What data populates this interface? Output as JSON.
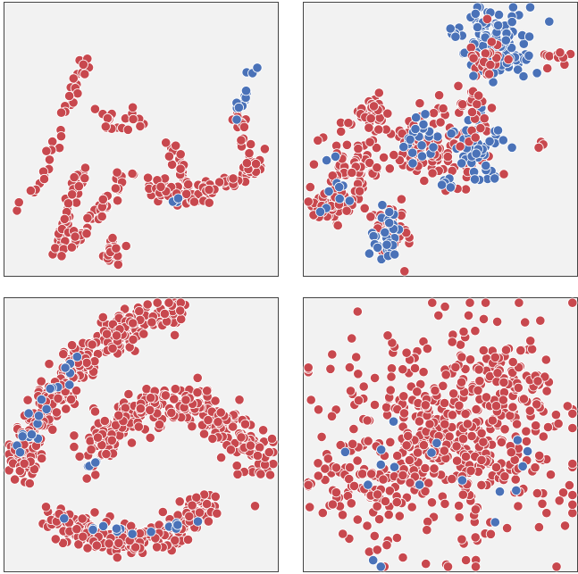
{
  "colors": {
    "red": "#c8484e",
    "blue": "#4a72b8",
    "panel_bg": "#f2f2f2",
    "panel_border": "#444444",
    "point_edge": "#ffffff"
  },
  "chart_data": [
    {
      "type": "scatter",
      "title": "",
      "xlabel": "",
      "ylabel": "",
      "xlim": [
        0,
        1
      ],
      "ylim": [
        0,
        1
      ],
      "grid": false,
      "legend": "none",
      "clusters": [
        {
          "color": "red",
          "n": 20,
          "cx": 0.39,
          "cy": 0.91,
          "sx": 0.02,
          "sy": 0.03
        },
        {
          "color": "red",
          "n": 35,
          "path": [
            [
              0.3,
              0.6
            ],
            [
              0.26,
              0.68
            ],
            [
              0.23,
              0.78
            ],
            [
              0.21,
              0.86
            ],
            [
              0.2,
              0.93
            ]
          ],
          "spread": 0.012
        },
        {
          "color": "red",
          "n": 45,
          "path": [
            [
              0.21,
              0.93
            ],
            [
              0.28,
              0.84
            ],
            [
              0.35,
              0.76
            ],
            [
              0.41,
              0.68
            ],
            [
              0.47,
              0.6
            ]
          ],
          "spread": 0.013
        },
        {
          "color": "red",
          "n": 40,
          "path": [
            [
              0.04,
              0.75
            ],
            [
              0.1,
              0.7
            ],
            [
              0.15,
              0.62
            ],
            [
              0.19,
              0.5
            ],
            [
              0.23,
              0.38
            ],
            [
              0.26,
              0.3
            ],
            [
              0.29,
              0.22
            ]
          ],
          "spread": 0.014
        },
        {
          "color": "red",
          "n": 15,
          "path": [
            [
              0.34,
              0.38
            ],
            [
              0.38,
              0.43
            ],
            [
              0.4,
              0.47
            ],
            [
              0.43,
              0.44
            ],
            [
              0.47,
              0.4
            ]
          ],
          "spread": 0.012
        },
        {
          "color": "red",
          "n": 30,
          "path": [
            [
              0.6,
              0.52
            ],
            [
              0.63,
              0.57
            ],
            [
              0.66,
              0.62
            ],
            [
              0.68,
              0.68
            ],
            [
              0.7,
              0.72
            ]
          ],
          "spread": 0.016
        },
        {
          "color": "red",
          "n": 30,
          "path": [
            [
              0.52,
              0.66
            ],
            [
              0.58,
              0.68
            ],
            [
              0.63,
              0.7
            ],
            [
              0.68,
              0.71
            ]
          ],
          "spread": 0.016
        },
        {
          "color": "red",
          "n": 45,
          "path": [
            [
              0.68,
              0.71
            ],
            [
              0.74,
              0.69
            ],
            [
              0.8,
              0.67
            ],
            [
              0.86,
              0.64
            ],
            [
              0.91,
              0.6
            ],
            [
              0.94,
              0.57
            ]
          ],
          "spread": 0.018
        },
        {
          "color": "red",
          "n": 22,
          "path": [
            [
              0.84,
              0.4
            ],
            [
              0.87,
              0.48
            ],
            [
              0.88,
              0.56
            ],
            [
              0.9,
              0.62
            ]
          ],
          "spread": 0.014
        },
        {
          "color": "red",
          "n": 5,
          "cx": 0.48,
          "cy": 0.43,
          "sx": 0.015,
          "sy": 0.015
        },
        {
          "color": "blue",
          "n": 14,
          "path": [
            [
              0.84,
              0.44
            ],
            [
              0.86,
              0.38
            ],
            [
              0.89,
              0.3
            ],
            [
              0.91,
              0.24
            ]
          ],
          "spread": 0.01
        },
        {
          "color": "blue",
          "n": 3,
          "cx": 0.62,
          "cy": 0.72,
          "sx": 0.008,
          "sy": 0.006
        }
      ]
    },
    {
      "type": "scatter",
      "title": "",
      "xlabel": "",
      "ylabel": "",
      "xlim": [
        0,
        1
      ],
      "ylim": [
        0,
        1
      ],
      "grid": false,
      "legend": "none",
      "clusters": [
        {
          "color": "blue",
          "n": 120,
          "cx": 0.7,
          "cy": 0.14,
          "sx": 0.07,
          "sy": 0.06
        },
        {
          "color": "red",
          "n": 25,
          "cx": 0.67,
          "cy": 0.2,
          "sx": 0.04,
          "sy": 0.05
        },
        {
          "color": "red",
          "n": 14,
          "cx": 0.93,
          "cy": 0.21,
          "sx": 0.025,
          "sy": 0.018
        },
        {
          "color": "red",
          "n": 55,
          "cx": 0.55,
          "cy": 0.52,
          "sx": 0.06,
          "sy": 0.08
        },
        {
          "color": "blue",
          "n": 50,
          "cx": 0.64,
          "cy": 0.54,
          "sx": 0.04,
          "sy": 0.07
        },
        {
          "color": "red",
          "n": 60,
          "cx": 0.4,
          "cy": 0.52,
          "sx": 0.07,
          "sy": 0.06
        },
        {
          "color": "blue",
          "n": 20,
          "cx": 0.42,
          "cy": 0.5,
          "sx": 0.05,
          "sy": 0.06
        },
        {
          "color": "red",
          "n": 60,
          "cx": 0.18,
          "cy": 0.62,
          "sx": 0.06,
          "sy": 0.06
        },
        {
          "color": "red",
          "n": 40,
          "cx": 0.09,
          "cy": 0.74,
          "sx": 0.04,
          "sy": 0.03
        },
        {
          "color": "blue",
          "n": 10,
          "cx": 0.12,
          "cy": 0.64,
          "sx": 0.05,
          "sy": 0.07
        },
        {
          "color": "red",
          "n": 40,
          "cx": 0.24,
          "cy": 0.41,
          "sx": 0.04,
          "sy": 0.03
        },
        {
          "color": "red",
          "n": 45,
          "cx": 0.32,
          "cy": 0.84,
          "sx": 0.03,
          "sy": 0.06
        },
        {
          "color": "blue",
          "n": 30,
          "cx": 0.31,
          "cy": 0.85,
          "sx": 0.03,
          "sy": 0.05
        },
        {
          "color": "red",
          "n": 20,
          "cx": 0.62,
          "cy": 0.4,
          "sx": 0.03,
          "sy": 0.06
        },
        {
          "color": "red",
          "n": 4,
          "cx": 0.86,
          "cy": 0.52,
          "sx": 0.006,
          "sy": 0.006
        },
        {
          "color": "blue",
          "n": 6,
          "cx": 0.52,
          "cy": 0.66,
          "sx": 0.02,
          "sy": 0.015
        }
      ]
    },
    {
      "type": "scatter",
      "title": "",
      "xlabel": "",
      "ylabel": "",
      "xlim": [
        0,
        1
      ],
      "ylim": [
        0,
        1
      ],
      "grid": false,
      "legend": "none",
      "clusters": [
        {
          "color": "red",
          "n": 330,
          "path": [
            [
              0.06,
              0.65
            ],
            [
              0.09,
              0.52
            ],
            [
              0.16,
              0.38
            ],
            [
              0.27,
              0.25
            ],
            [
              0.4,
              0.13
            ],
            [
              0.52,
              0.07
            ],
            [
              0.64,
              0.05
            ]
          ],
          "spread": 0.032
        },
        {
          "color": "blue",
          "n": 20,
          "path": [
            [
              0.06,
              0.58
            ],
            [
              0.09,
              0.5
            ],
            [
              0.14,
              0.42
            ],
            [
              0.2,
              0.32
            ],
            [
              0.26,
              0.24
            ],
            [
              0.31,
              0.22
            ]
          ],
          "spread": 0.018
        },
        {
          "color": "red",
          "n": 300,
          "path": [
            [
              0.33,
              0.58
            ],
            [
              0.4,
              0.48
            ],
            [
              0.48,
              0.42
            ],
            [
              0.58,
              0.38
            ],
            [
              0.67,
              0.38
            ],
            [
              0.76,
              0.43
            ],
            [
              0.84,
              0.5
            ],
            [
              0.91,
              0.55
            ],
            [
              0.95,
              0.62
            ]
          ],
          "spread": 0.038
        },
        {
          "color": "blue",
          "n": 4,
          "path": [
            [
              0.3,
              0.62
            ],
            [
              0.34,
              0.6
            ],
            [
              0.38,
              0.58
            ],
            [
              0.4,
              0.57
            ]
          ],
          "spread": 0.006
        },
        {
          "color": "red",
          "n": 230,
          "path": [
            [
              0.16,
              0.79
            ],
            [
              0.25,
              0.84
            ],
            [
              0.36,
              0.88
            ],
            [
              0.48,
              0.88
            ],
            [
              0.59,
              0.86
            ],
            [
              0.67,
              0.82
            ],
            [
              0.74,
              0.74
            ]
          ],
          "spread": 0.028
        },
        {
          "color": "blue",
          "n": 14,
          "path": [
            [
              0.18,
              0.78
            ],
            [
              0.26,
              0.83
            ],
            [
              0.38,
              0.86
            ],
            [
              0.48,
              0.86
            ],
            [
              0.56,
              0.84
            ],
            [
              0.66,
              0.8
            ]
          ],
          "spread": 0.02
        }
      ]
    },
    {
      "type": "scatter",
      "title": "",
      "xlabel": "",
      "ylabel": "",
      "xlim": [
        0,
        1
      ],
      "ylim": [
        0,
        1
      ],
      "grid": false,
      "legend": "none",
      "clusters": [
        {
          "color": "red",
          "n": 480,
          "cx": 0.54,
          "cy": 0.5,
          "sx": 0.21,
          "sy": 0.2
        },
        {
          "color": "red",
          "n": 60,
          "cx": 0.2,
          "cy": 0.7,
          "sx": 0.09,
          "sy": 0.08
        },
        {
          "color": "red",
          "n": 45,
          "cx": 0.76,
          "cy": 0.3,
          "sx": 0.1,
          "sy": 0.1
        },
        {
          "color": "blue",
          "n": 18,
          "cx": 0.45,
          "cy": 0.62,
          "sx": 0.23,
          "sy": 0.18
        }
      ]
    }
  ]
}
